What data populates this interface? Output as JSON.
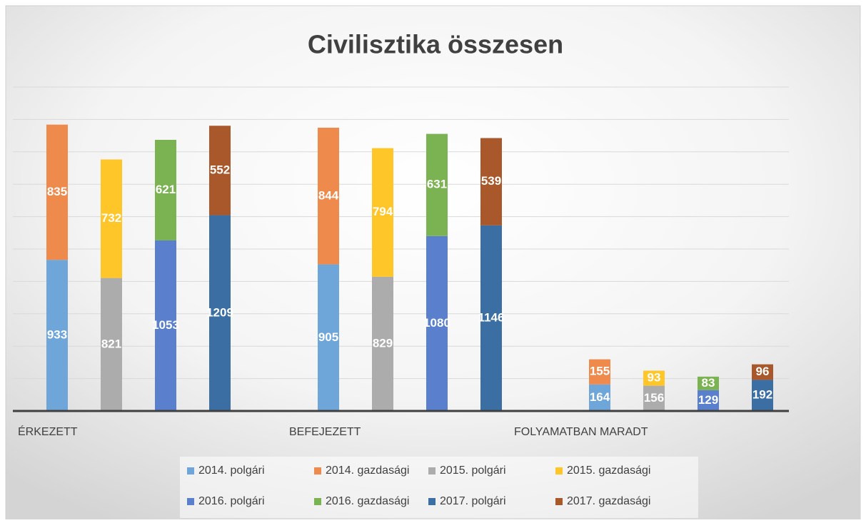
{
  "chart_data": {
    "type": "bar",
    "title": "Civilisztika összesen",
    "categories": [
      "ÉRKEZETT",
      "BEFEJEZETT",
      "FOLYAMATBAN MARADT"
    ],
    "series": [
      {
        "name": "2014. polgári",
        "color": "#6fa6d9",
        "values": [
          933,
          905,
          164
        ]
      },
      {
        "name": "2014. gazdasági",
        "color": "#ed8a4c",
        "values": [
          835,
          844,
          155
        ]
      },
      {
        "name": "2015. polgári",
        "color": "#acacac",
        "values": [
          821,
          829,
          156
        ]
      },
      {
        "name": "2015. gazdasági",
        "color": "#ffc62a",
        "values": [
          732,
          794,
          93
        ]
      },
      {
        "name": "2016. polgári",
        "color": "#5a7fcc",
        "values": [
          1053,
          1080,
          129
        ]
      },
      {
        "name": "2016. gazdasági",
        "color": "#7cb352",
        "values": [
          621,
          631,
          83
        ]
      },
      {
        "name": "2017. polgári",
        "color": "#3b6ea3",
        "values": [
          1209,
          1146,
          192
        ]
      },
      {
        "name": "2017. gazdasági",
        "color": "#a8582a",
        "values": [
          552,
          539,
          96
        ]
      }
    ],
    "ylim": [
      0,
      2000
    ],
    "yticks": [
      0,
      200,
      400,
      600,
      800,
      1000,
      1200,
      1400,
      1600,
      1800,
      2000
    ],
    "grid": true
  }
}
